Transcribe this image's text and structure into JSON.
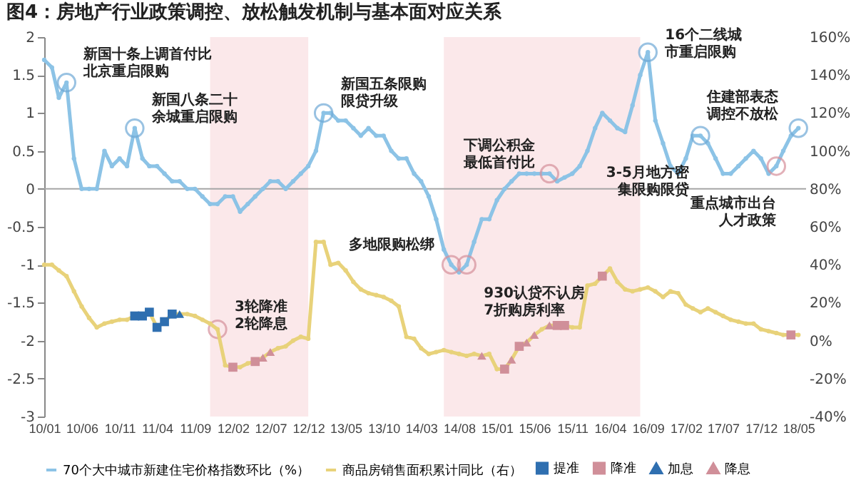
{
  "chart_data": {
    "type": "line",
    "title": "图4：房地产行业政策调控、放松触发机制与基本面对应关系",
    "x": [
      "2010-01",
      "2010-02",
      "2010-03",
      "2010-04",
      "2010-05",
      "2010-06",
      "2010-07",
      "2010-08",
      "2010-09",
      "2010-10",
      "2010-11",
      "2010-12",
      "2011-01",
      "2011-02",
      "2011-03",
      "2011-04",
      "2011-05",
      "2011-06",
      "2011-07",
      "2011-08",
      "2011-09",
      "2011-10",
      "2011-11",
      "2011-12",
      "2012-01",
      "2012-02",
      "2012-03",
      "2012-04",
      "2012-05",
      "2012-06",
      "2012-07",
      "2012-08",
      "2012-09",
      "2012-10",
      "2012-11",
      "2012-12",
      "2013-01",
      "2013-02",
      "2013-03",
      "2013-04",
      "2013-05",
      "2013-06",
      "2013-07",
      "2013-08",
      "2013-09",
      "2013-10",
      "2013-11",
      "2013-12",
      "2014-01",
      "2014-02",
      "2014-03",
      "2014-04",
      "2014-05",
      "2014-06",
      "2014-07",
      "2014-08",
      "2014-09",
      "2014-10",
      "2014-11",
      "2014-12",
      "2015-01",
      "2015-02",
      "2015-03",
      "2015-04",
      "2015-05",
      "2015-06",
      "2015-07",
      "2015-08",
      "2015-09",
      "2015-10",
      "2015-11",
      "2015-12",
      "2016-01",
      "2016-02",
      "2016-03",
      "2016-04",
      "2016-05",
      "2016-06",
      "2016-07",
      "2016-08",
      "2016-09",
      "2016-10",
      "2016-11",
      "2016-12",
      "2017-01",
      "2017-02",
      "2017-03",
      "2017-04",
      "2017-05",
      "2017-06",
      "2017-07",
      "2017-08",
      "2017-09",
      "2017-10",
      "2017-11",
      "2017-12",
      "2018-01",
      "2018-02",
      "2018-03",
      "2018-04",
      "2018-05"
    ],
    "series": [
      {
        "name": "70个大中城市新建住宅价格指数环比（%）",
        "color": "#8cc3e6",
        "marker": "circle",
        "values": [
          1.7,
          1.6,
          1.2,
          1.4,
          0.4,
          0,
          0,
          0,
          0.5,
          0.3,
          0.4,
          0.3,
          0.8,
          0.4,
          0.3,
          0.3,
          0.2,
          0.1,
          0.1,
          0,
          0,
          -0.1,
          -0.2,
          -0.2,
          -0.1,
          -0.1,
          -0.3,
          -0.2,
          -0.1,
          0,
          0.1,
          0.1,
          0,
          0.1,
          0.2,
          0.3,
          0.5,
          1.0,
          1.0,
          0.9,
          0.9,
          0.8,
          0.7,
          0.8,
          0.7,
          0.7,
          0.5,
          0.4,
          0.4,
          0.2,
          0.1,
          -0.1,
          -0.4,
          -0.8,
          -1.0,
          -1.1,
          -1.0,
          -0.7,
          -0.4,
          -0.4,
          -0.15,
          0,
          0.1,
          0.2,
          0.2,
          0.2,
          0.2,
          0.2,
          0.1,
          0.15,
          0.2,
          0.3,
          0.5,
          0.8,
          1.0,
          0.9,
          0.8,
          0.75,
          1.1,
          1.5,
          1.8,
          0.9,
          0.6,
          0.3,
          0.2,
          0.4,
          0.7,
          0.7,
          0.6,
          0.4,
          0.2,
          0.2,
          0.3,
          0.4,
          0.5,
          0.4,
          0.2,
          0.3,
          0.5,
          0.7,
          0.8
        ]
      },
      {
        "name": "商品房销售面积累计同比（右）",
        "color": "#e8d27a",
        "marker": "circle",
        "axis": "y2",
        "values": [
          40,
          40,
          37,
          34,
          26,
          18,
          12,
          7,
          9,
          10,
          11,
          11,
          13,
          13,
          15,
          7,
          10,
          14,
          14,
          14,
          13,
          11,
          9,
          6,
          -13,
          -14,
          -14,
          -12,
          -11,
          -9,
          -6,
          -4,
          -3,
          0,
          2,
          1,
          52,
          52,
          40,
          41,
          37,
          31,
          27,
          25,
          24,
          23,
          21,
          18,
          2,
          1,
          -4,
          -7,
          -6,
          -5,
          -6,
          -7,
          -8,
          -7,
          -8,
          -7,
          -15,
          -15,
          -10,
          -3,
          -1,
          3,
          6,
          8,
          8,
          8,
          7,
          7,
          29,
          30,
          34,
          38,
          31,
          27,
          26,
          27,
          28,
          26,
          23,
          26,
          25,
          19,
          17,
          15,
          17,
          15,
          13,
          11,
          10,
          9,
          9,
          6,
          5,
          4,
          3,
          3,
          3
        ]
      },
      {
        "name": "提准",
        "color": "#2f6fb0",
        "type": "scatter",
        "marker": "square",
        "axis": "y2",
        "x": [
          "2011-01",
          "2011-02",
          "2011-03",
          "2011-04",
          "2011-05",
          "2011-06"
        ],
        "values": [
          13,
          13,
          15,
          7,
          10,
          14
        ]
      },
      {
        "name": "降准",
        "color": "#d08f99",
        "type": "scatter",
        "marker": "square",
        "axis": "y2",
        "x": [
          "2012-02",
          "2012-05",
          "2015-02",
          "2015-04",
          "2015-09",
          "2015-10",
          "2016-03",
          "2018-04"
        ],
        "values": [
          -14,
          -11,
          -15,
          -3,
          8,
          8,
          34,
          3
        ]
      },
      {
        "name": "加息",
        "color": "#2f6fb0",
        "type": "scatter",
        "marker": "triangle",
        "axis": "y2",
        "x": [
          "2011-07"
        ],
        "values": [
          14
        ]
      },
      {
        "name": "降息",
        "color": "#d08f99",
        "type": "scatter",
        "marker": "triangle",
        "axis": "y2",
        "x": [
          "2012-06",
          "2012-07",
          "2014-11",
          "2015-03",
          "2015-05",
          "2015-06",
          "2015-08"
        ],
        "values": [
          -9,
          -6,
          -8,
          -10,
          -1,
          3,
          8
        ]
      }
    ],
    "xlim": [
      "2010-01",
      "2018-06"
    ],
    "xticks": [
      {
        "value": "2010-01",
        "label": "10/01"
      },
      {
        "value": "2010-06",
        "label": "10/06"
      },
      {
        "value": "2010-11",
        "label": "10/11"
      },
      {
        "value": "2011-04",
        "label": "11/04"
      },
      {
        "value": "2011-09",
        "label": "11/09"
      },
      {
        "value": "2012-02",
        "label": "12/02"
      },
      {
        "value": "2012-07",
        "label": "12/07"
      },
      {
        "value": "2012-12",
        "label": "12/12"
      },
      {
        "value": "2013-05",
        "label": "13/05"
      },
      {
        "value": "2013-10",
        "label": "13/10"
      },
      {
        "value": "2014-03",
        "label": "14/03"
      },
      {
        "value": "2014-08",
        "label": "14/08"
      },
      {
        "value": "2015-01",
        "label": "15/01"
      },
      {
        "value": "2015-06",
        "label": "15/06"
      },
      {
        "value": "2015-11",
        "label": "15/11"
      },
      {
        "value": "2016-04",
        "label": "16/04"
      },
      {
        "value": "2016-09",
        "label": "16/09"
      },
      {
        "value": "2017-02",
        "label": "17/02"
      },
      {
        "value": "2017-07",
        "label": "17/07"
      },
      {
        "value": "2017-12",
        "label": "17/12"
      },
      {
        "value": "2018-05",
        "label": "18/05"
      }
    ],
    "ylim": [
      -3,
      2
    ],
    "yticks": [
      -3,
      -2.5,
      -2,
      -1.5,
      -1,
      -0.5,
      0,
      0.5,
      1,
      1.5,
      2
    ],
    "y2lim": [
      -40,
      160
    ],
    "y2ticks": [
      {
        "value": -40,
        "label": "-40%"
      },
      {
        "value": -20,
        "label": "-20%"
      },
      {
        "value": 0,
        "label": "0%"
      },
      {
        "value": 20,
        "label": "20%"
      },
      {
        "value": 40,
        "label": "40%"
      },
      {
        "value": 60,
        "label": "60%"
      },
      {
        "value": 80,
        "label": "80%"
      },
      {
        "value": 100,
        "label": "100%"
      },
      {
        "value": 120,
        "label": "120%"
      },
      {
        "value": 140,
        "label": "140%"
      },
      {
        "value": 160,
        "label": "160%"
      }
    ],
    "bands": [
      {
        "axis": "x",
        "from": "2011-11",
        "to": "2012-12",
        "color": "#fbe8ea"
      },
      {
        "axis": "x",
        "from": "2014-06",
        "to": "2016-08",
        "color": "#fbe8ea"
      }
    ],
    "ref_lines": [
      {
        "axis": "y",
        "value": 0,
        "color": "#a6a6a6"
      }
    ],
    "annotations": [
      {
        "text": "新国十条上调首付比北京重启限购",
        "x": "2010-04",
        "y": 1.4
      },
      {
        "text": "新国八条二十余城重启限购",
        "x": "2011-01",
        "y": 0.8
      },
      {
        "text": "新国五条限购限贷升级",
        "x": "2013-02",
        "y": 1.0
      },
      {
        "text": "多地限购松绑",
        "x": "2014-07",
        "y": -1.0
      },
      {
        "text": "930认贷不认房7折购房利率",
        "x": "2014-09",
        "y": -1.0
      },
      {
        "text": "下调公积金最低首付比",
        "x": "2015-08",
        "y": 0.2
      },
      {
        "text": "16个二线城市重启限购",
        "x": "2016-09",
        "y": 1.8
      },
      {
        "text": "3-5月地方密集限购限贷",
        "x": "2017-04",
        "y": 0.7
      },
      {
        "text": "住建部表态调控不放松",
        "x": "2018-05",
        "y": 0.8
      },
      {
        "text": "重点城市出台人才政策",
        "x": "2018-02",
        "y": 0.3
      },
      {
        "text": "3轮降准2轮降息",
        "x": "2011-12",
        "y": -1.85
      }
    ],
    "legend": "bottom"
  }
}
